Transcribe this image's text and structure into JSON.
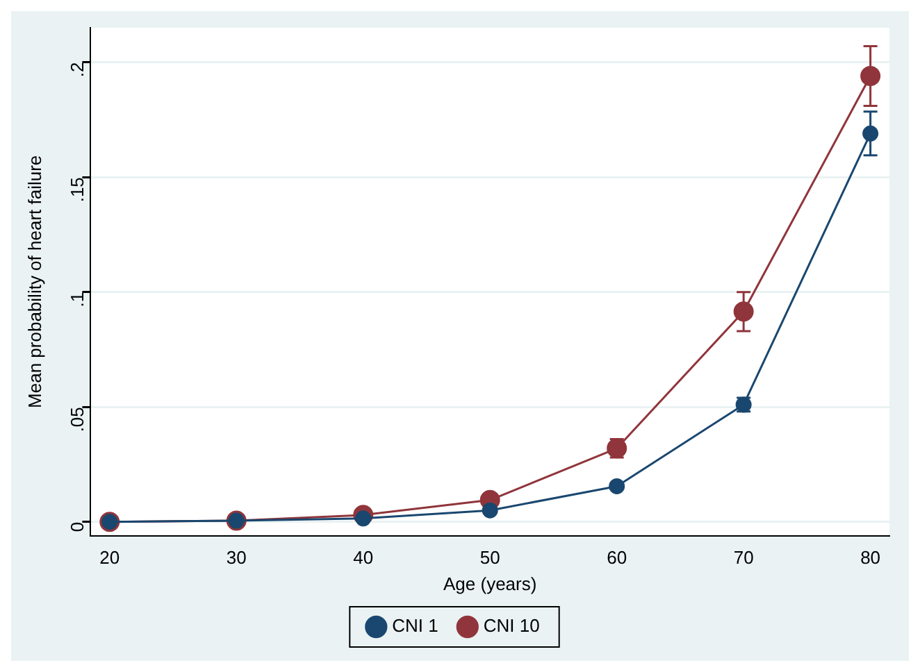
{
  "chart_data": {
    "type": "line",
    "xlabel": "Age (years)",
    "ylabel": "Mean probability of heart failure",
    "x": [
      20,
      30,
      40,
      50,
      60,
      70,
      80
    ],
    "series": [
      {
        "name": "CNI 1",
        "color": "#1a476f",
        "values": [
          0,
          0.0005,
          0.0015,
          0.005,
          0.0155,
          0.051,
          0.169
        ],
        "errors": [
          null,
          null,
          null,
          null,
          0.001,
          0.003,
          0.0095
        ]
      },
      {
        "name": "CNI 10",
        "color": "#90353b",
        "values": [
          0,
          0.0005,
          0.003,
          0.0095,
          0.032,
          0.0915,
          0.194
        ],
        "errors": [
          null,
          null,
          null,
          null,
          0.004,
          0.0085,
          0.013
        ]
      }
    ],
    "xlim": [
      18.5,
      81.5
    ],
    "xticks": [
      20,
      30,
      40,
      50,
      60,
      70,
      80
    ],
    "ylim": [
      -0.006,
      0.215
    ],
    "yticks": [
      {
        "value": 0,
        "label": "0"
      },
      {
        "value": 0.05,
        "label": ".05"
      },
      {
        "value": 0.1,
        "label": ".1"
      },
      {
        "value": 0.15,
        "label": ".15"
      },
      {
        "value": 0.2,
        "label": ".2"
      }
    ],
    "grid": "y",
    "legend": "bottom",
    "marker": "circle",
    "line_style": "solid"
  }
}
